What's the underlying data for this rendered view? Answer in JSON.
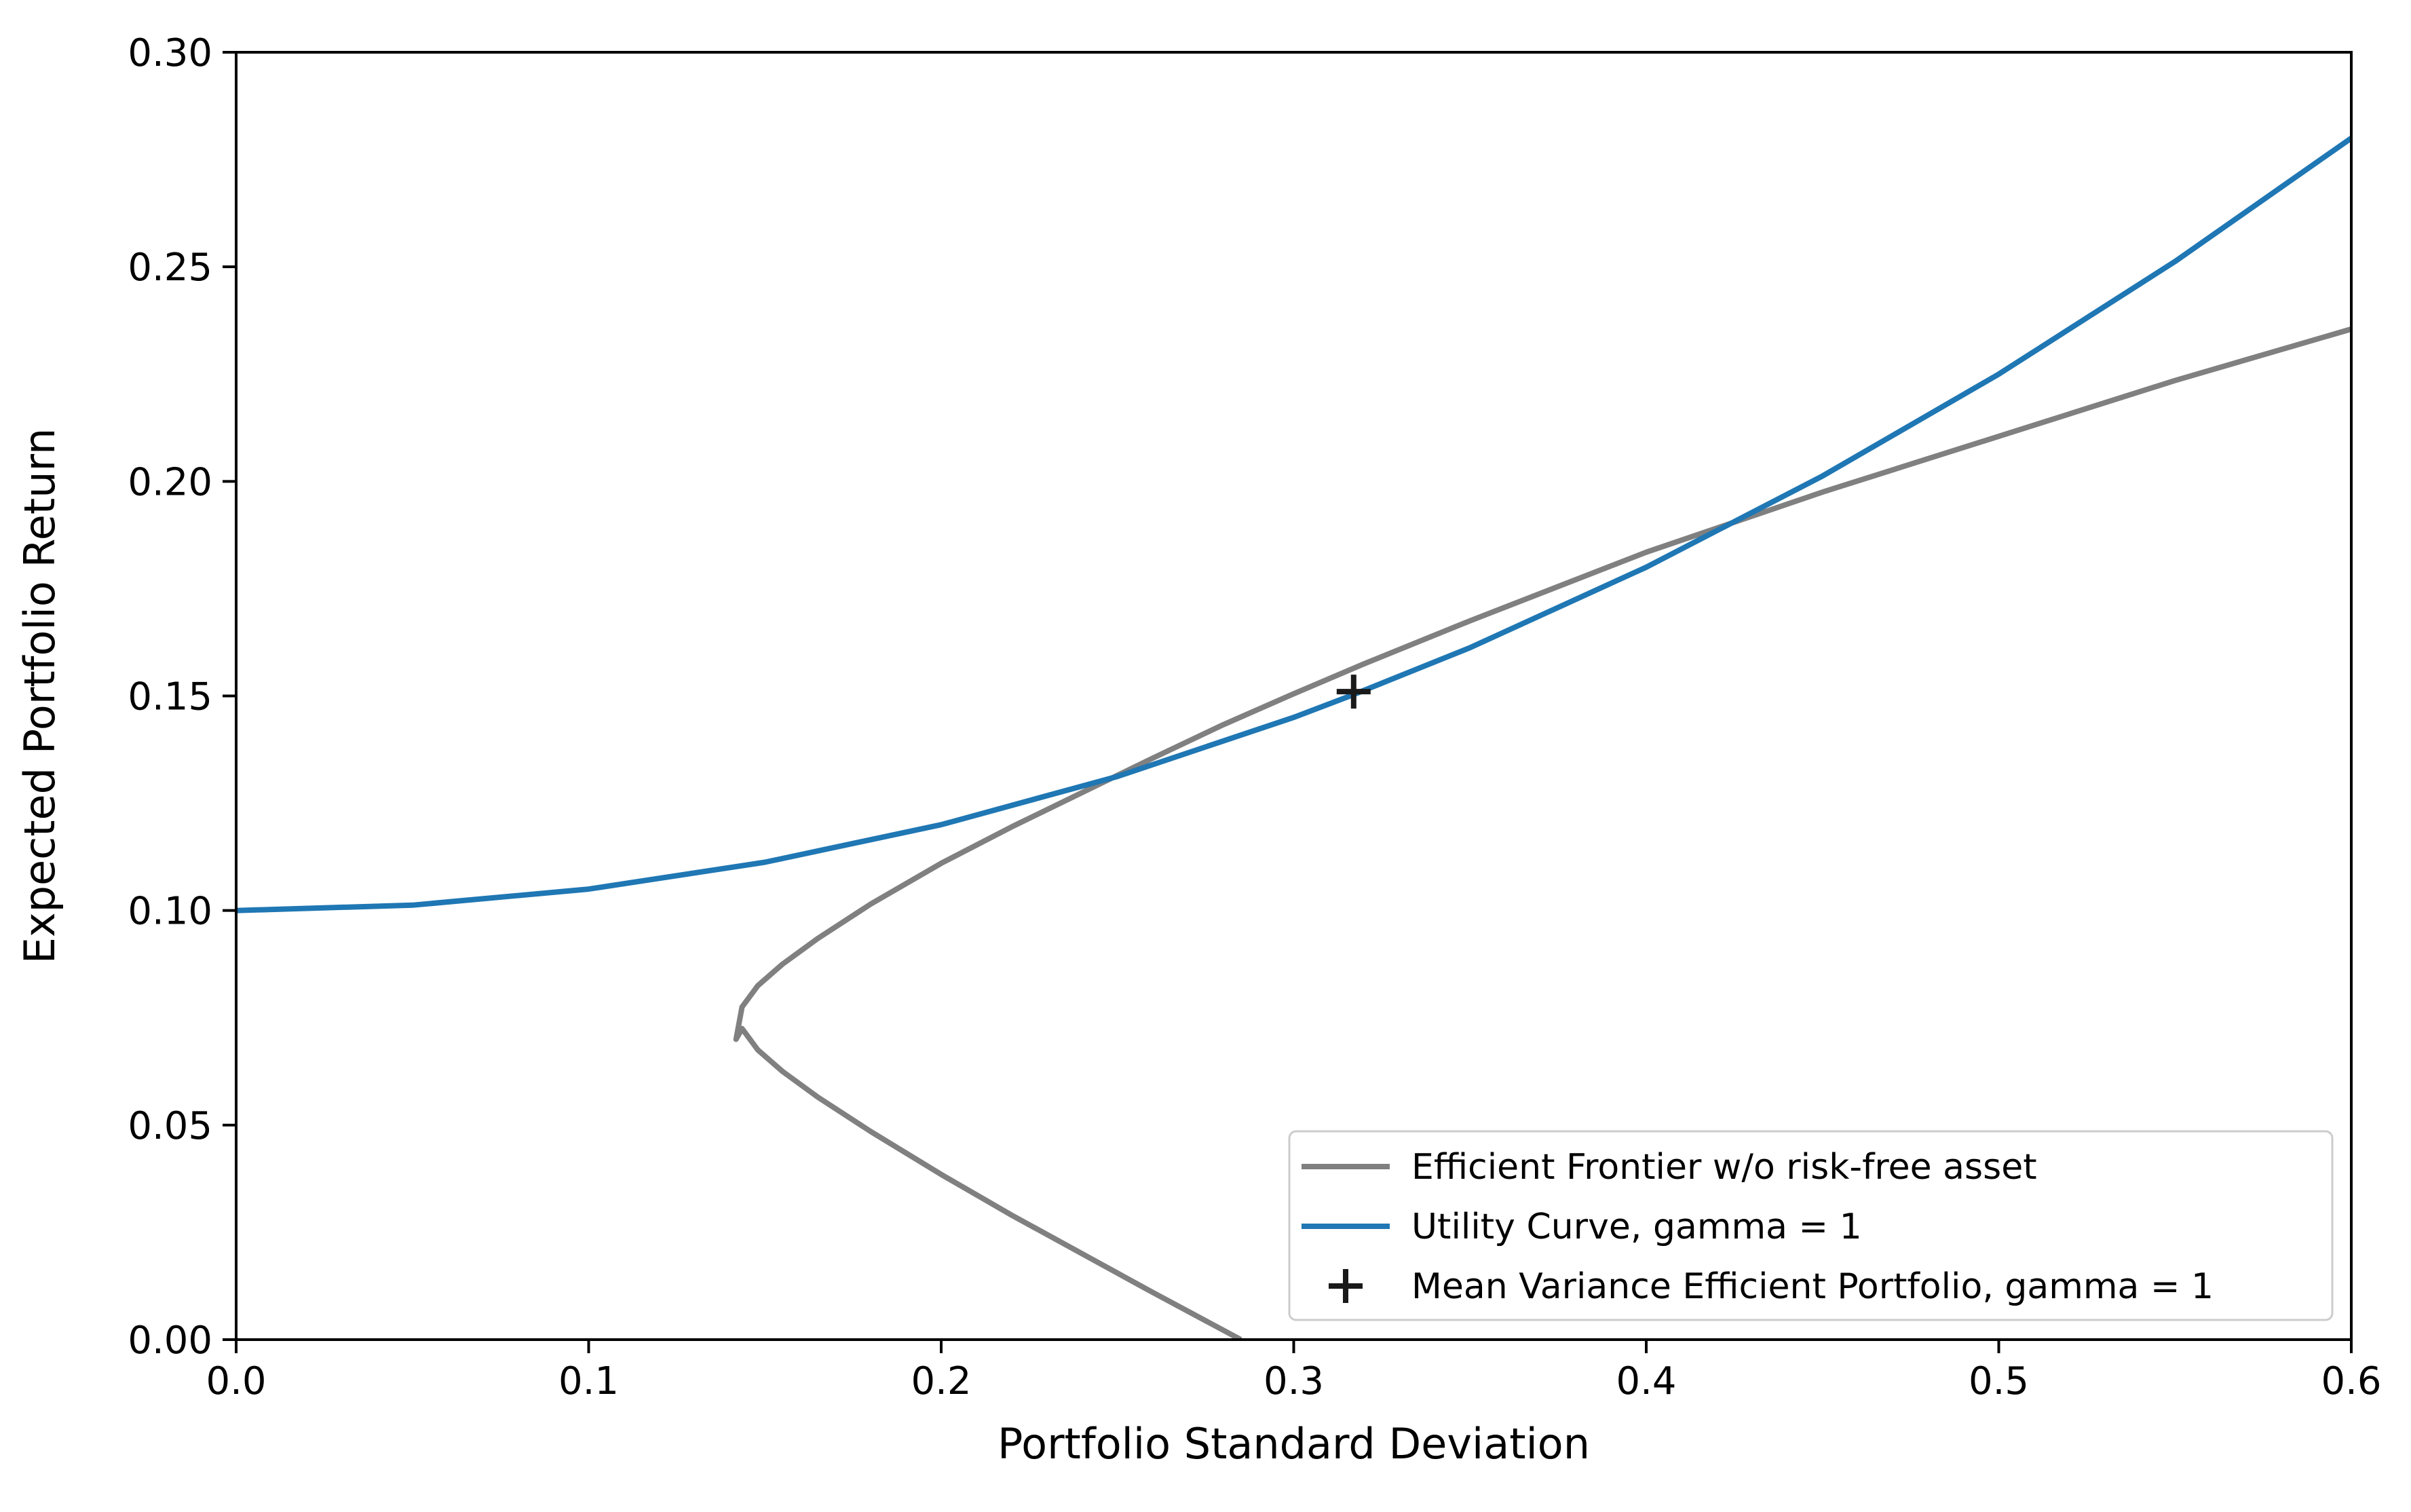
{
  "chart_data": {
    "type": "line",
    "title": "",
    "xlabel": "Portfolio Standard Deviation",
    "ylabel": "Expected Portfolio Return",
    "xlim": [
      0.0,
      0.6
    ],
    "ylim": [
      0.0,
      0.3
    ],
    "x_ticks": [
      0.0,
      0.1,
      0.2,
      0.3,
      0.4,
      0.5,
      0.6
    ],
    "x_tick_labels": [
      "0.0",
      "0.1",
      "0.2",
      "0.3",
      "0.4",
      "0.5",
      "0.6"
    ],
    "y_ticks": [
      0.0,
      0.05,
      0.1,
      0.15,
      0.2,
      0.25,
      0.3
    ],
    "y_tick_labels": [
      "0.00",
      "0.05",
      "0.10",
      "0.15",
      "0.20",
      "0.25",
      "0.30"
    ],
    "grid": false,
    "legend_position": "bottom-right",
    "series": [
      {
        "name": "Efficient Frontier w/o risk-free asset",
        "kind": "line",
        "color": "#808080",
        "x": [
          0.285,
          0.26,
          0.24,
          0.22,
          0.2,
          0.18,
          0.165,
          0.155,
          0.148,
          0.1435,
          0.1418,
          0.1435,
          0.148,
          0.155,
          0.165,
          0.18,
          0.2,
          0.22,
          0.24,
          0.26,
          0.28,
          0.3,
          0.32,
          0.35,
          0.4,
          0.45,
          0.5,
          0.55,
          0.6
        ],
        "y": [
          0.0,
          0.011,
          0.02,
          0.029,
          0.0385,
          0.0485,
          0.0565,
          0.0625,
          0.0675,
          0.0725,
          0.07,
          0.0775,
          0.0825,
          0.0875,
          0.0935,
          0.1015,
          0.111,
          0.1195,
          0.1275,
          0.1355,
          0.1433,
          0.1505,
          0.1575,
          0.1675,
          0.1835,
          0.1975,
          0.2105,
          0.2235,
          0.2355
        ]
      },
      {
        "name": "Utility Curve, gamma = 1",
        "kind": "line",
        "color": "#1f77b4",
        "x": [
          0.0,
          0.05,
          0.1,
          0.15,
          0.2,
          0.25,
          0.3,
          0.316,
          0.35,
          0.4,
          0.45,
          0.5,
          0.55,
          0.6
        ],
        "y": [
          0.1,
          0.10125,
          0.105,
          0.11125,
          0.12,
          0.13125,
          0.145,
          0.15,
          0.16125,
          0.18,
          0.20125,
          0.225,
          0.25125,
          0.28
        ]
      },
      {
        "name": "Mean Variance Efficient Portfolio, gamma = 1",
        "kind": "marker",
        "marker": "+",
        "color": "#1a1a1a",
        "x": [
          0.317
        ],
        "y": [
          0.151
        ]
      }
    ]
  }
}
